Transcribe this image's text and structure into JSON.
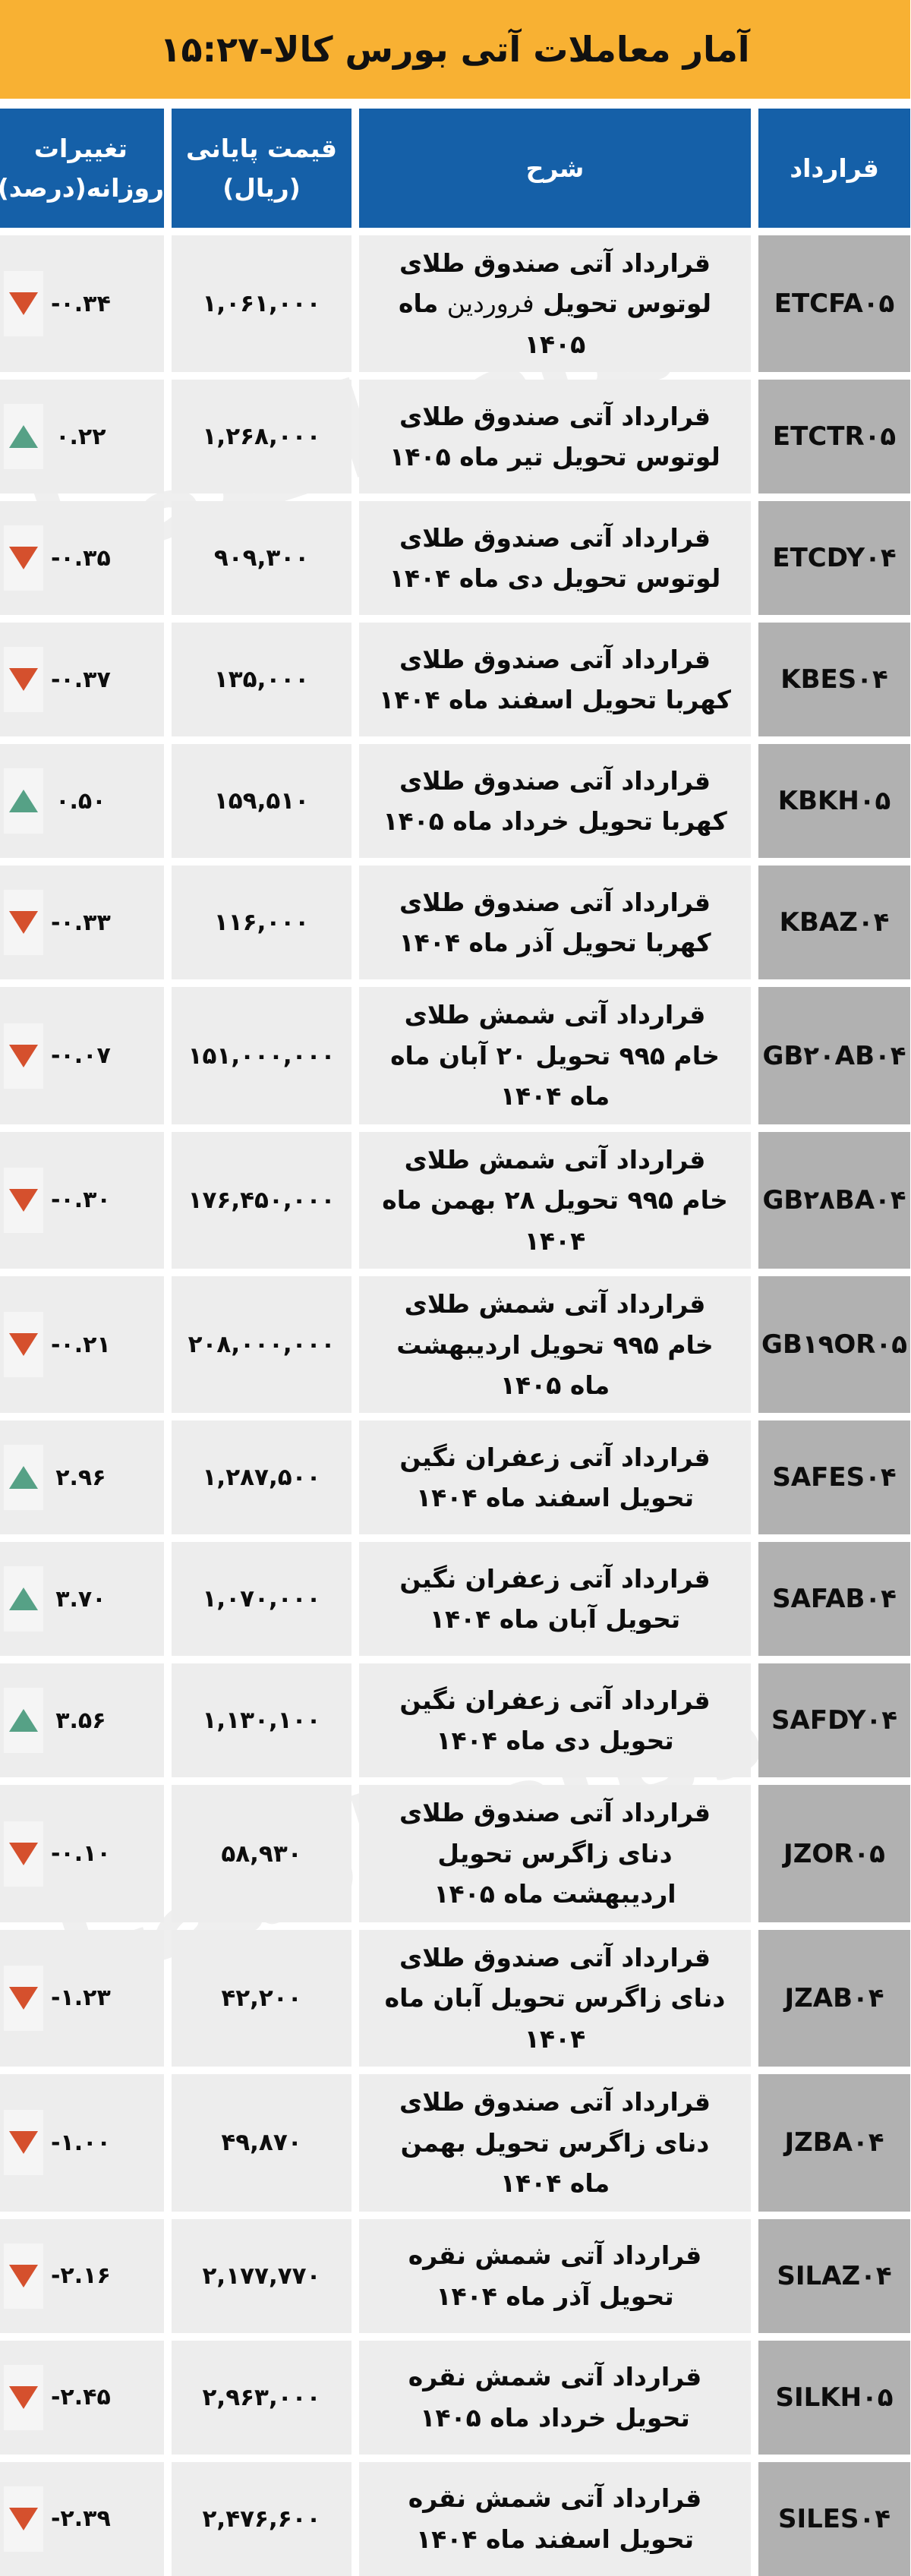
{
  "title": "آمار معاملات آتی بورس کالا-۱۵:۲۷",
  "watermark_text": "دنیای اقتصاد",
  "colors": {
    "banner_yellow": "#F8B133",
    "header_blue": "#1560A8",
    "cell_gray": "#EDEDED",
    "contract_gray": "#B1B1B1",
    "down_red": "#D5502D",
    "up_green": "#56A186"
  },
  "table": {
    "column_headers": {
      "contract": "قرارداد",
      "description": "شرح",
      "price_line1": "قیمت پایانی",
      "price_line2": "(ریال)",
      "change_line1": "تغییرات",
      "change_line2": "روزانه(درصد)"
    },
    "rows": [
      {
        "code": "ETCFA۰۵",
        "description": "قرارداد آتی صندوق طلای لوتوس تحویل فروردین ماه ۱۴۰۵",
        "light_word": "فروردین",
        "price": "۱,۰۶۱,۰۰۰",
        "change": "-۰.۳۴",
        "direction": "down"
      },
      {
        "code": "ETCTR۰۵",
        "description": "قرارداد آتی صندوق طلای لوتوس تحویل تیر ماه ۱۴۰۵",
        "price": "۱,۲۶۸,۰۰۰",
        "change": "۰.۲۲",
        "direction": "up"
      },
      {
        "code": "ETCDY۰۴",
        "description": "قرارداد آتی صندوق طلای لوتوس تحویل دی ماه ۱۴۰۴",
        "price": "۹۰۹,۳۰۰",
        "change": "-۰.۳۵",
        "direction": "down"
      },
      {
        "code": "KBES۰۴",
        "description": "قرارداد آتی صندوق طلای کهربا تحویل اسفند ماه ۱۴۰۴",
        "price": "۱۳۵,۰۰۰",
        "change": "-۰.۳۷",
        "direction": "down"
      },
      {
        "code": "KBKH۰۵",
        "description": "قرارداد آتی صندوق طلای کهربا تحویل خرداد ماه ۱۴۰۵",
        "price": "۱۵۹,۵۱۰",
        "change": "۰.۵۰",
        "direction": "up"
      },
      {
        "code": "KBAZ۰۴",
        "description": "قرارداد آتی صندوق طلای کهربا تحویل آذر ماه ۱۴۰۴",
        "price": "۱۱۶,۰۰۰",
        "change": "-۰.۳۳",
        "direction": "down"
      },
      {
        "code": "GB۲۰AB۰۴",
        "description": "قرارداد آتی شمش طلای خام ۹۹۵ تحویل ۲۰ آبان ماه ماه ۱۴۰۴",
        "price": "۱۵۱,۰۰۰,۰۰۰",
        "change": "-۰.۰۷",
        "direction": "down"
      },
      {
        "code": "GB۲۸BA۰۴",
        "description": "قرارداد آتی شمش طلای خام ۹۹۵ تحویل ۲۸ بهمن ماه ۱۴۰۴",
        "price": "۱۷۶,۴۵۰,۰۰۰",
        "change": "-۰.۳۰",
        "direction": "down"
      },
      {
        "code": "GB۱۹OR۰۵",
        "description": "قرارداد آتی شمش طلای خام ۹۹۵ تحویل اردیبهشت ماه ۱۴۰۵",
        "price": "۲۰۸,۰۰۰,۰۰۰",
        "change": "-۰.۲۱",
        "direction": "down"
      },
      {
        "code": "SAFES۰۴",
        "description": "قرارداد آتی زعفران نگین تحویل اسفند ماه ۱۴۰۴",
        "price": "۱,۲۸۷,۵۰۰",
        "change": "۲.۹۶",
        "direction": "up"
      },
      {
        "code": "SAFAB۰۴",
        "description": "قرارداد آتی زعفران نگین تحویل آبان ماه ۱۴۰۴",
        "price": "۱,۰۷۰,۰۰۰",
        "change": "۳.۷۰",
        "direction": "up"
      },
      {
        "code": "SAFDY۰۴",
        "description": "قرارداد آتی زعفران نگین تحویل دی ماه ۱۴۰۴",
        "price": "۱,۱۳۰,۱۰۰",
        "change": "۳.۵۶",
        "direction": "up"
      },
      {
        "code": "JZOR۰۵",
        "description": "قرارداد آتی صندوق طلای دنای زاگرس تحویل اردیبهشت ماه ۱۴۰۵",
        "price": "۵۸,۹۳۰",
        "change": "-۰.۱۰",
        "direction": "down"
      },
      {
        "code": "JZAB۰۴",
        "description": "قرارداد آتی صندوق طلای دنای زاگرس تحویل آبان ماه ۱۴۰۴",
        "price": "۴۲,۲۰۰",
        "change": "-۱.۲۳",
        "direction": "down"
      },
      {
        "code": "JZBA۰۴",
        "description": "قرارداد آتی صندوق طلای دنای زاگرس تحویل بهمن ماه ۱۴۰۴",
        "price": "۴۹,۸۷۰",
        "change": "-۱.۰۰",
        "direction": "down"
      },
      {
        "code": "SILAZ۰۴",
        "description": "قرارداد آتی شمش نقره تحویل آذر ماه ۱۴۰۴",
        "price": "۲,۱۷۷,۷۷۰",
        "change": "-۲.۱۶",
        "direction": "down"
      },
      {
        "code": "SILKH۰۵",
        "description": "قرارداد آتی شمش نقره تحویل خرداد ماه ۱۴۰۵",
        "price": "۲,۹۶۳,۰۰۰",
        "change": "-۲.۴۵",
        "direction": "down"
      },
      {
        "code": "SILES۰۴",
        "description": "قرارداد آتی شمش نقره تحویل اسفند ماه ۱۴۰۴",
        "price": "۲,۴۷۶,۶۰۰",
        "change": "-۲.۳۹",
        "direction": "down"
      }
    ]
  },
  "chart_data": {
    "type": "table",
    "title": "آمار معاملات آتی بورس کالا-۱۵:۲۷",
    "time_shown": "۱۵:۲۷",
    "columns": [
      "قرارداد",
      "شرح",
      "قیمت پایانی (ریال)",
      "تغییرات روزانه(درصد)"
    ],
    "rows": [
      {
        "contract": "ETCFA05",
        "description": "قرارداد آتی صندوق طلای لوتوس تحویل فروردین ماه ۱۴۰۵",
        "closing_price_rial": 1061000,
        "daily_change_pct": -0.34
      },
      {
        "contract": "ETCTR05",
        "description": "قرارداد آتی صندوق طلای لوتوس تحویل تیر ماه ۱۴۰۵",
        "closing_price_rial": 1268000,
        "daily_change_pct": 0.22
      },
      {
        "contract": "ETCDY04",
        "description": "قرارداد آتی صندوق طلای لوتوس تحویل دی ماه ۱۴۰۴",
        "closing_price_rial": 909300,
        "daily_change_pct": -0.35
      },
      {
        "contract": "KBES04",
        "description": "قرارداد آتی صندوق طلای کهربا تحویل اسفند ماه ۱۴۰۴",
        "closing_price_rial": 135000,
        "daily_change_pct": -0.37
      },
      {
        "contract": "KBKH05",
        "description": "قرارداد آتی صندوق طلای کهربا تحویل خرداد ماه ۱۴۰۵",
        "closing_price_rial": 159510,
        "daily_change_pct": 0.5
      },
      {
        "contract": "KBAZ04",
        "description": "قرارداد آتی صندوق طلای کهربا تحویل آذر ماه ۱۴۰۴",
        "closing_price_rial": 116000,
        "daily_change_pct": -0.33
      },
      {
        "contract": "GB20AB04",
        "description": "قرارداد آتی شمش طلای خام ۹۹۵ تحویل ۲۰ آبان ماه ماه ۱۴۰۴",
        "closing_price_rial": 151000000,
        "daily_change_pct": -0.07
      },
      {
        "contract": "GB28BA04",
        "description": "قرارداد آتی شمش طلای خام ۹۹۵ تحویل ۲۸ بهمن ماه ۱۴۰۴",
        "closing_price_rial": 176450000,
        "daily_change_pct": -0.3
      },
      {
        "contract": "GB19OR05",
        "description": "قرارداد آتی شمش طلای خام ۹۹۵ تحویل اردیبهشت ماه ۱۴۰۵",
        "closing_price_rial": 208000000,
        "daily_change_pct": -0.21
      },
      {
        "contract": "SAFES04",
        "description": "قرارداد آتی زعفران نگین تحویل اسفند ماه ۱۴۰۴",
        "closing_price_rial": 1287500,
        "daily_change_pct": 2.96
      },
      {
        "contract": "SAFAB04",
        "description": "قرارداد آتی زعفران نگین تحویل آبان ماه ۱۴۰۴",
        "closing_price_rial": 1070000,
        "daily_change_pct": 3.7
      },
      {
        "contract": "SAFDY04",
        "description": "قرارداد آتی زعفران نگین تحویل دی ماه ۱۴۰۴",
        "closing_price_rial": 1130100,
        "daily_change_pct": 3.56
      },
      {
        "contract": "JZOR05",
        "description": "قرارداد آتی صندوق طلای دنای زاگرس تحویل اردیبهشت ماه ۱۴۰۵",
        "closing_price_rial": 58930,
        "daily_change_pct": -0.1
      },
      {
        "contract": "JZAB04",
        "description": "قرارداد آتی صندوق طلای دنای زاگرس تحویل آبان ماه ۱۴۰۴",
        "closing_price_rial": 42200,
        "daily_change_pct": -1.23
      },
      {
        "contract": "JZBA04",
        "description": "قرارداد آتی صندوق طلای دنای زاگرس تحویل بهمن ماه ۱۴۰۴",
        "closing_price_rial": 49870,
        "daily_change_pct": -1.0
      },
      {
        "contract": "SILAZ04",
        "description": "قرارداد آتی شمش نقره تحویل آذر ماه ۱۴۰۴",
        "closing_price_rial": 2177770,
        "daily_change_pct": -2.16
      },
      {
        "contract": "SILKH05",
        "description": "قرارداد آتی شمش نقره تحویل خرداد ماه ۱۴۰۵",
        "closing_price_rial": 2963000,
        "daily_change_pct": -2.45
      },
      {
        "contract": "SILES04",
        "description": "قرارداد آتی شمش نقره تحویل اسفند ماه ۱۴۰۴",
        "closing_price_rial": 2476600,
        "daily_change_pct": -2.39
      }
    ]
  }
}
